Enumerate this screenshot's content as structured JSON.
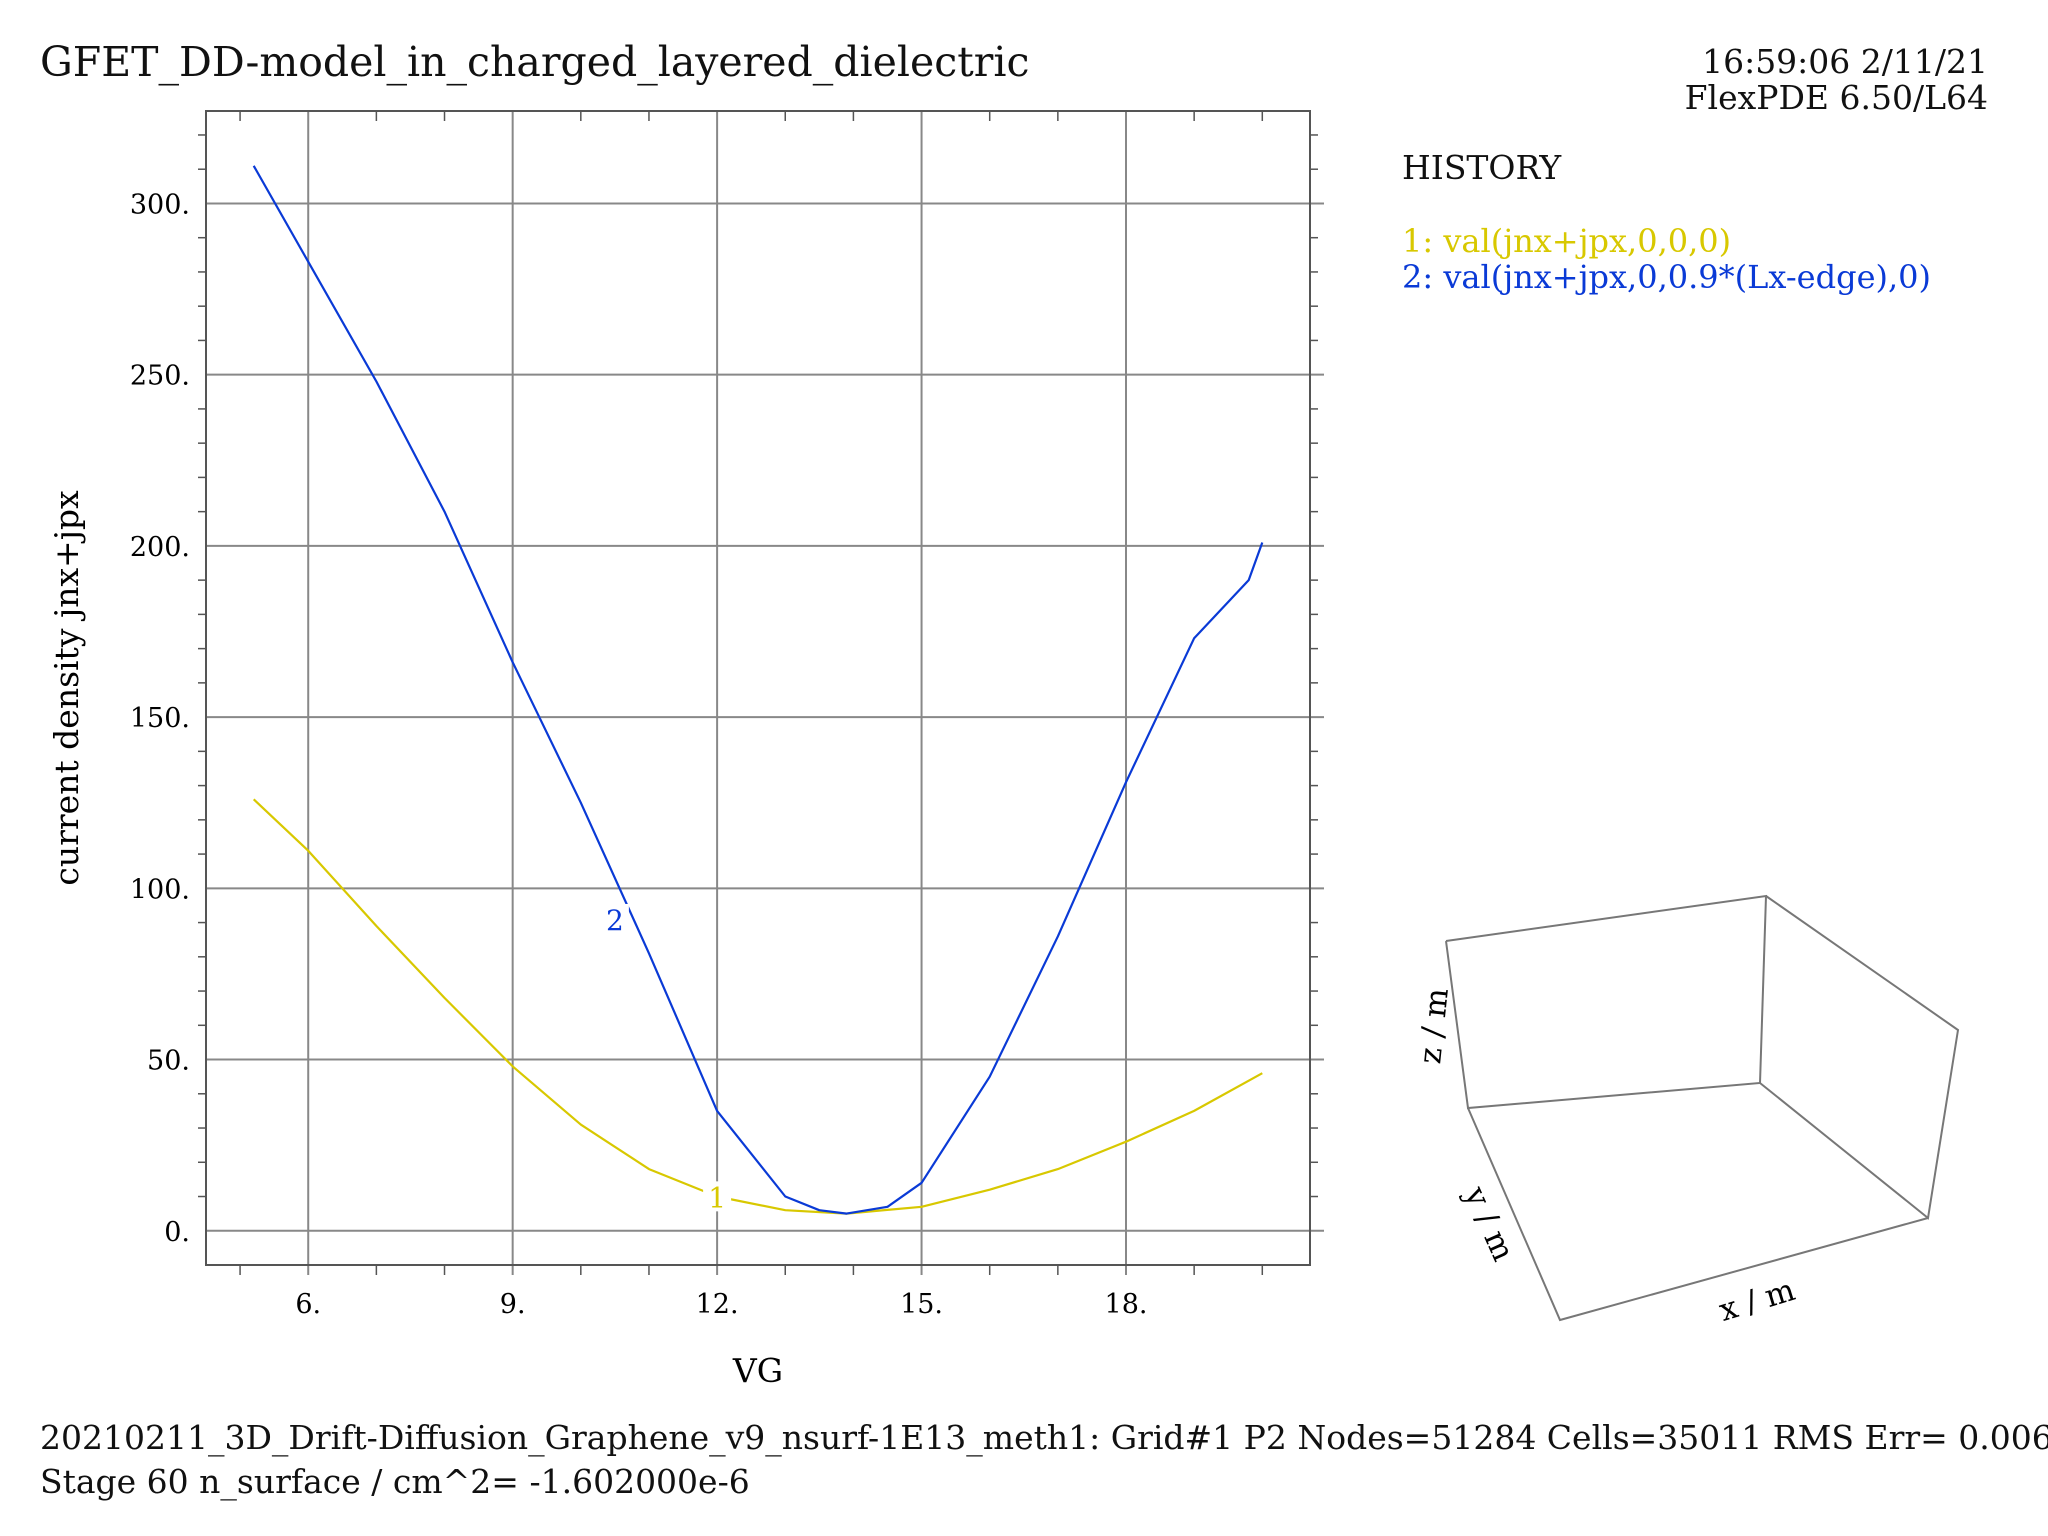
{
  "header": {
    "title": "GFET_DD-model_in_charged_layered_dielectric",
    "timestamp": "16:59:06 2/11/21",
    "version": "FlexPDE 6.50/L64"
  },
  "legend": {
    "title": "HISTORY",
    "items": [
      {
        "label": "1: val(jnx+jpx,0,0,0)",
        "color": "#d8c800"
      },
      {
        "label": "2: val(jnx+jpx,0,0.9*(Lx-edge),0)",
        "color": "#0a3ad6"
      }
    ]
  },
  "chart_data": {
    "type": "line",
    "xlabel": "VG",
    "ylabel": "current density jnx+jpx",
    "xlim": [
      4.5,
      20.7
    ],
    "ylim": [
      -10,
      327
    ],
    "x_ticks": [
      6,
      9,
      12,
      15,
      18
    ],
    "y_ticks": [
      0,
      50,
      100,
      150,
      200,
      250,
      300
    ],
    "x_tick_labels": [
      "6.",
      "9.",
      "12.",
      "15.",
      "18."
    ],
    "y_tick_labels": [
      "0.",
      "50.",
      "100.",
      "150.",
      "200.",
      "250.",
      "300."
    ],
    "grid": true,
    "series": [
      {
        "name": "1",
        "color": "#d8c800",
        "x": [
          5.2,
          6.0,
          7.0,
          8.0,
          9.0,
          10.0,
          11.0,
          12.0,
          13.0,
          13.9,
          15.0,
          16.0,
          17.0,
          18.0,
          19.0,
          20.0
        ],
        "y": [
          126,
          111,
          89,
          68,
          48,
          31,
          18,
          10,
          6,
          5,
          7,
          12,
          18,
          26,
          35,
          46
        ]
      },
      {
        "name": "2",
        "color": "#0a3ad6",
        "x": [
          5.2,
          6.0,
          7.0,
          8.0,
          9.0,
          10.0,
          11.0,
          12.0,
          13.0,
          13.5,
          13.9,
          14.5,
          15.0,
          16.0,
          17.0,
          18.0,
          19.0,
          19.8,
          20.0
        ],
        "y": [
          311,
          283,
          248,
          210,
          166,
          125,
          81,
          35,
          10,
          6,
          5,
          7,
          14,
          45,
          86,
          131,
          173,
          190,
          201
        ]
      }
    ],
    "curve_labels": [
      {
        "text": "1",
        "x": 12.0,
        "y": 8
      },
      {
        "text": "2",
        "x": 10.5,
        "y": 89
      }
    ]
  },
  "axes3d": {
    "x_label": "x / m",
    "y_label": "y / m",
    "z_label": "z / m"
  },
  "footer": {
    "line1": "20210211_3D_Drift-Diffusion_Graphene_v9_nsurf-1E13_meth1:  Grid#1  P2  Nodes=51284 Cells=35011 RMS Err= 0.006",
    "line2": "Stage 60  n_surface / cm^2= -1.602000e-6"
  }
}
